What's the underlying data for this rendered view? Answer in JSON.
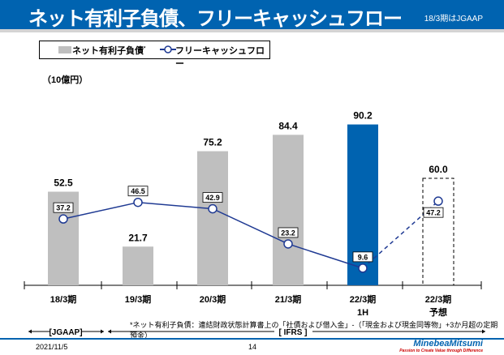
{
  "header": {
    "title": "ネット有利子負債、フリーキャッシュフロー",
    "note": "18/3期はJGAAP"
  },
  "unit": "（10億円）",
  "footnote": "*ネット有利子負債：連結財政状態計算書上の「社債および借入金」-（「現金および現金同等物」+3か月超の定期預金）",
  "periods": {
    "jgaap": "[JGAAP]",
    "ifrs": "[ IFRS ]"
  },
  "footer": {
    "date": "2021/11/5",
    "page": "14",
    "logo": "MinebeaMitsumi",
    "tagline": "Passion to Create Value through Difference"
  },
  "chart_data": {
    "type": "bar",
    "categories": [
      "18/3期",
      "19/3期",
      "20/3期",
      "21/3期",
      "22/3期",
      "22/3期"
    ],
    "category_sub": [
      "",
      "",
      "",
      "",
      "1H",
      "予想"
    ],
    "series": [
      {
        "name": "ネット有利子負債",
        "marker": "*",
        "type": "bar",
        "values": [
          52.5,
          21.7,
          75.2,
          84.4,
          90.2,
          60.0
        ],
        "colors": [
          "#bfbfbf",
          "#bfbfbf",
          "#bfbfbf",
          "#bfbfbf",
          "#0063b0",
          "dashed-outline"
        ]
      },
      {
        "name": "フリーキャッシュフロー",
        "type": "line",
        "values": [
          37.2,
          46.5,
          42.9,
          23.2,
          9.6,
          47.2
        ],
        "color": "#1f3a93",
        "last_segment": "dashed"
      }
    ],
    "ylim": [
      0,
      100
    ]
  }
}
